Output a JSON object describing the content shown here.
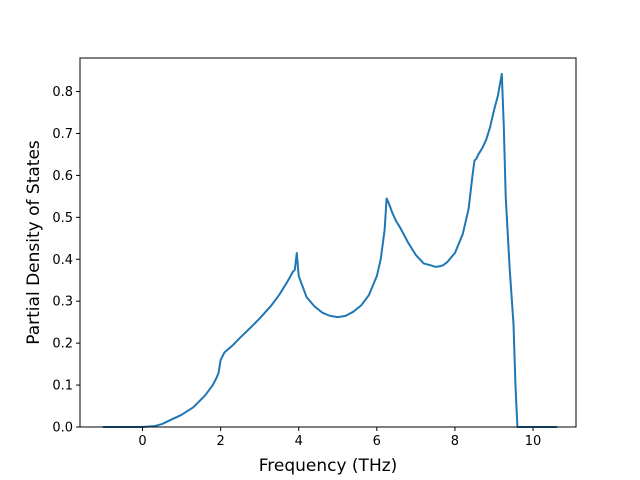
{
  "chart_data": {
    "type": "line",
    "title": "",
    "xlabel": "Frequency (THz)",
    "ylabel": "Partial Density of States",
    "xlim": [
      -1.6,
      11.1
    ],
    "ylim": [
      0.0,
      0.88
    ],
    "xticks": [
      0,
      2,
      4,
      6,
      8,
      10
    ],
    "yticks": [
      0.0,
      0.1,
      0.2,
      0.3,
      0.4,
      0.5,
      0.6,
      0.7,
      0.8
    ],
    "xtick_labels": [
      "0",
      "2",
      "4",
      "6",
      "8",
      "10"
    ],
    "ytick_labels": [
      "0.0",
      "0.1",
      "0.2",
      "0.3",
      "0.4",
      "0.5",
      "0.6",
      "0.7",
      "0.8"
    ],
    "grid": false,
    "legend": "none",
    "series": [
      {
        "color": "#1f77b4",
        "x": [
          -1.0,
          0.0,
          0.3,
          0.5,
          0.7,
          1.0,
          1.3,
          1.6,
          1.8,
          1.9,
          1.95,
          2.0,
          2.1,
          2.3,
          2.5,
          2.8,
          3.0,
          3.3,
          3.5,
          3.7,
          3.85,
          3.9,
          3.95,
          4.0,
          4.2,
          4.4,
          4.6,
          4.8,
          5.0,
          5.2,
          5.4,
          5.6,
          5.8,
          6.0,
          6.1,
          6.2,
          6.25,
          6.3,
          6.4,
          6.5,
          6.6,
          6.8,
          7.0,
          7.2,
          7.4,
          7.5,
          7.6,
          7.7,
          7.8,
          8.0,
          8.2,
          8.35,
          8.45,
          8.5,
          8.55,
          8.6,
          8.7,
          8.8,
          8.9,
          9.0,
          9.1,
          9.2,
          9.25,
          9.3,
          9.4,
          9.5,
          9.55,
          9.6,
          9.65,
          10.6
        ],
        "y": [
          0.0,
          0.0,
          0.002,
          0.007,
          0.016,
          0.029,
          0.047,
          0.075,
          0.1,
          0.118,
          0.13,
          0.16,
          0.178,
          0.194,
          0.213,
          0.24,
          0.259,
          0.29,
          0.315,
          0.345,
          0.37,
          0.375,
          0.415,
          0.36,
          0.31,
          0.288,
          0.273,
          0.265,
          0.262,
          0.265,
          0.275,
          0.29,
          0.315,
          0.36,
          0.4,
          0.47,
          0.545,
          0.535,
          0.51,
          0.49,
          0.475,
          0.44,
          0.41,
          0.39,
          0.385,
          0.382,
          0.383,
          0.386,
          0.393,
          0.415,
          0.46,
          0.52,
          0.6,
          0.635,
          0.64,
          0.65,
          0.665,
          0.685,
          0.715,
          0.755,
          0.79,
          0.842,
          0.72,
          0.55,
          0.38,
          0.245,
          0.1,
          0.0,
          0.0,
          0.0
        ]
      }
    ]
  }
}
